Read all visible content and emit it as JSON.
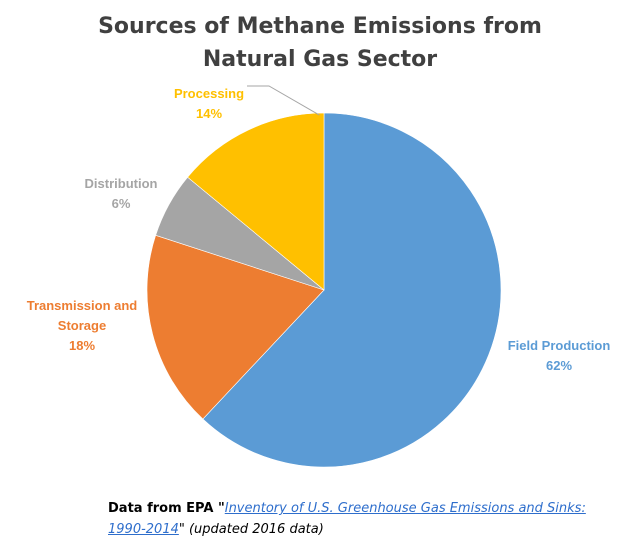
{
  "chart_data": {
    "type": "pie",
    "title_lines": [
      "Sources of Methane Emissions from",
      "Natural Gas Sector"
    ],
    "slices": [
      {
        "label": "Field Production",
        "value": 62,
        "value_label": "62%",
        "color": "#5b9bd5"
      },
      {
        "label": "Transmission and Storage",
        "label_lines": [
          "Transmission and",
          "Storage"
        ],
        "value": 18,
        "value_label": "18%",
        "color": "#ed7d31"
      },
      {
        "label": "Distribution",
        "value": 6,
        "value_label": "6%",
        "color": "#a5a5a5"
      },
      {
        "label": "Processing",
        "value": 14,
        "value_label": "14%",
        "color": "#ffc000"
      }
    ],
    "start_direction": "top",
    "winding": "clockwise",
    "legend": "none"
  },
  "source": {
    "prefix": "Data from EPA \"",
    "link_text": "Inventory of U.S. Greenhouse Gas Emissions and Sinks: 1990-2014",
    "suffix": "\" (updated 2016 data)"
  }
}
